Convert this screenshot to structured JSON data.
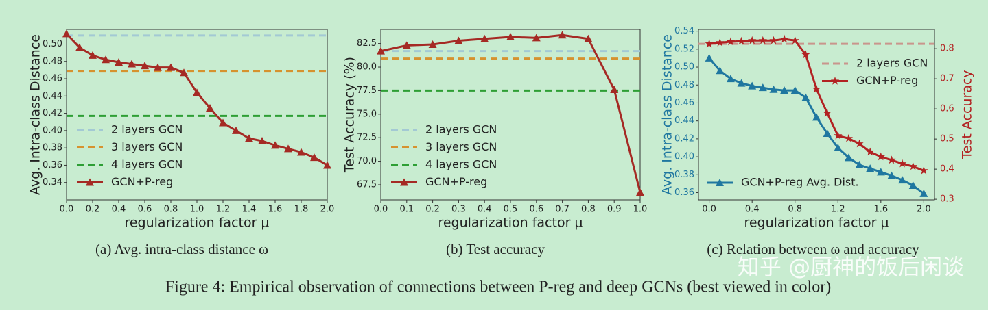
{
  "chart_data": [
    {
      "type": "line",
      "xlabel": "regularization factor μ",
      "ylabel": "Avg. Intra-class Distance",
      "caption": "(a) Avg. intra-class distance ω",
      "x": [
        0,
        0.1,
        0.2,
        0.3,
        0.4,
        0.5,
        0.6,
        0.7,
        0.8,
        0.9,
        1.0,
        1.1,
        1.2,
        1.3,
        1.4,
        1.5,
        1.6,
        1.7,
        1.8,
        1.9,
        2.0
      ],
      "xlim": [
        0,
        2
      ],
      "xticks": [
        {
          "value": 0,
          "label": "0.0"
        },
        0.2,
        0.4,
        0.6,
        0.8,
        {
          "value": 1,
          "label": "1.0"
        },
        1.2,
        1.4,
        1.6,
        1.8,
        {
          "value": 2,
          "label": "2.0"
        }
      ],
      "ylim": [
        0.32,
        0.517
      ],
      "yticks": [
        0.34,
        0.36,
        0.38,
        {
          "value": 0.4,
          "label": "0.40"
        },
        0.42,
        0.44,
        0.46,
        0.48,
        {
          "value": 0.5,
          "label": "0.50"
        }
      ],
      "legend": "lower left",
      "reference_lines": [
        {
          "name": "2 layers GCN",
          "color": "#a3c9d4",
          "value": 0.51
        },
        {
          "name": "3 layers GCN",
          "color": "#d6922f",
          "value": 0.469
        },
        {
          "name": "4 layers GCN",
          "color": "#2e9e35",
          "value": 0.417
        }
      ],
      "series": [
        {
          "name": "GCN+P-reg",
          "color": "#a52a24",
          "marker": "triangle",
          "values": [
            0.512,
            0.496,
            0.487,
            0.482,
            0.479,
            0.477,
            0.475,
            0.473,
            0.473,
            0.467,
            0.444,
            0.426,
            0.409,
            0.4,
            0.391,
            0.388,
            0.383,
            0.379,
            0.375,
            0.369,
            0.36
          ]
        }
      ]
    },
    {
      "type": "line",
      "xlabel": "regularization factor μ",
      "ylabel": "Test Accuracy (%)",
      "caption": "(b) Test accuracy",
      "x": [
        0,
        0.1,
        0.2,
        0.3,
        0.4,
        0.5,
        0.6,
        0.7,
        0.8,
        0.9,
        1.0
      ],
      "xlim": [
        0,
        1
      ],
      "xticks": [
        {
          "value": 0,
          "label": "0.0"
        },
        0.1,
        0.2,
        0.3,
        0.4,
        0.5,
        0.6,
        0.7,
        0.8,
        0.9,
        {
          "value": 1,
          "label": "1.0"
        }
      ],
      "ylim": [
        65.9,
        84.0
      ],
      "yticks": [
        67.5,
        {
          "value": 70,
          "label": "70.0"
        },
        72.5,
        {
          "value": 75,
          "label": "75.0"
        },
        77.5,
        {
          "value": 80,
          "label": "80.0"
        },
        82.5
      ],
      "legend": "lower left",
      "reference_lines": [
        {
          "name": "2 layers GCN",
          "color": "#a3c9d4",
          "value": 81.7
        },
        {
          "name": "3 layers GCN",
          "color": "#d6922f",
          "value": 80.9
        },
        {
          "name": "4 layers GCN",
          "color": "#2e9e35",
          "value": 77.5
        }
      ],
      "series": [
        {
          "name": "GCN+P-reg",
          "color": "#a52a24",
          "marker": "triangle",
          "values": [
            81.7,
            82.3,
            82.4,
            82.8,
            83.0,
            83.2,
            83.1,
            83.4,
            83.0,
            77.6,
            66.7
          ]
        }
      ]
    },
    {
      "type": "line",
      "xlabel": "regularization factor μ",
      "ylabel": "Avg. Intra-class Distance",
      "y2label": "Test Accuracy",
      "caption": "(c) Relation between ω and accuracy",
      "x": [
        0,
        0.1,
        0.2,
        0.3,
        0.4,
        0.5,
        0.6,
        0.7,
        0.8,
        0.9,
        1.0,
        1.1,
        1.2,
        1.3,
        1.4,
        1.5,
        1.6,
        1.7,
        1.8,
        1.9,
        2.0
      ],
      "xlim": [
        -0.1,
        2.1
      ],
      "xticks": [
        {
          "value": 0,
          "label": "0.0"
        },
        0.4,
        0.8,
        1.2,
        1.6,
        {
          "value": 2,
          "label": "2.0"
        }
      ],
      "ylim": [
        0.352,
        0.542
      ],
      "yticks": [
        0.36,
        0.38,
        {
          "value": 0.4,
          "label": "0.40"
        },
        0.42,
        0.44,
        0.46,
        0.48,
        {
          "value": 0.5,
          "label": "0.50"
        },
        0.52,
        0.54
      ],
      "y2lim": [
        0.298,
        0.864
      ],
      "y2ticks": [
        0.3,
        0.4,
        0.5,
        0.6,
        0.7,
        0.8
      ],
      "ycolor": "#1f77a0",
      "y2color": "#b22222",
      "reference_lines": [
        {
          "name": "2 layers GCN",
          "color": "#c9958c",
          "value": 0.816,
          "axis": "y2"
        }
      ],
      "series": [
        {
          "name": "GCN+P-reg",
          "color": "#b22222",
          "marker": "star",
          "axis": "y2",
          "values": [
            0.816,
            0.82,
            0.823,
            0.825,
            0.827,
            0.827,
            0.827,
            0.832,
            0.827,
            0.78,
            0.666,
            0.586,
            0.511,
            0.502,
            0.484,
            0.457,
            0.441,
            0.43,
            0.418,
            0.409,
            0.395
          ]
        },
        {
          "name": "GCN+P-reg Avg. Dist.",
          "color": "#1f77a0",
          "marker": "triangle",
          "values": [
            0.51,
            0.496,
            0.487,
            0.482,
            0.479,
            0.477,
            0.475,
            0.474,
            0.474,
            0.466,
            0.444,
            0.426,
            0.41,
            0.399,
            0.391,
            0.387,
            0.383,
            0.379,
            0.374,
            0.368,
            0.359
          ]
        }
      ]
    }
  ],
  "figure_caption": "Figure 4: Empirical observation of connections between P-reg and deep GCNs (best viewed in color)",
  "watermark": "知乎 @厨神的饭后闲谈"
}
